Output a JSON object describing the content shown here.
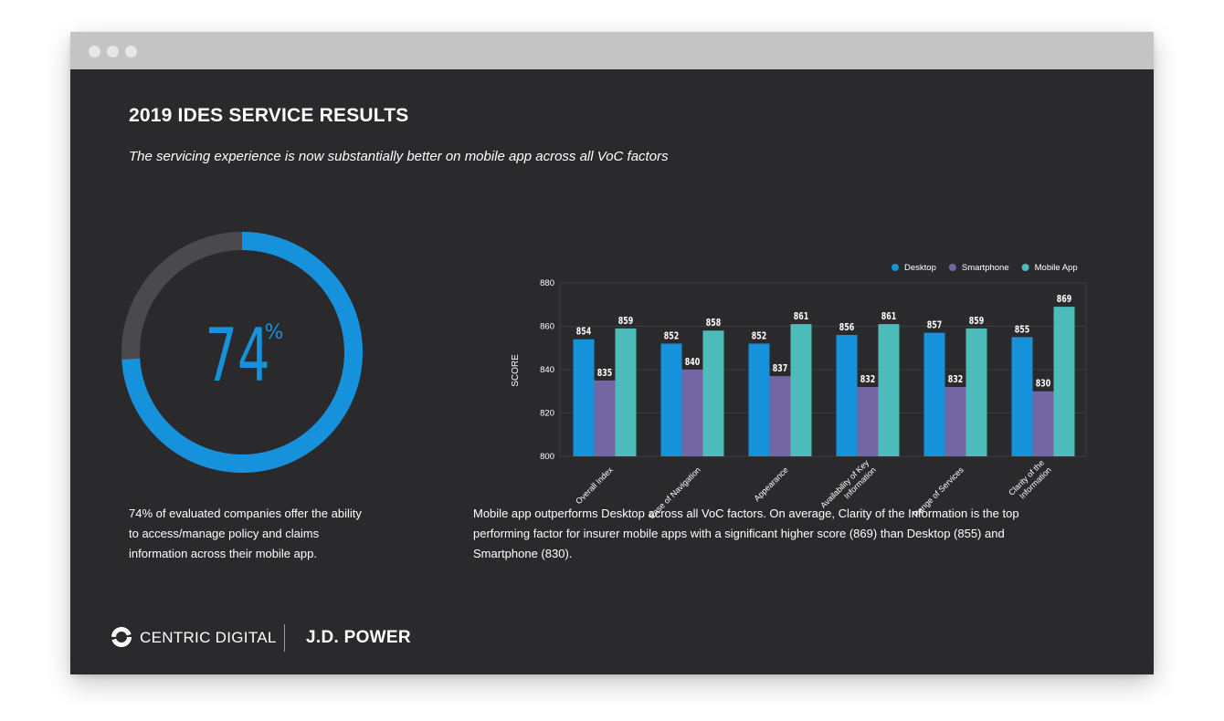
{
  "header": {
    "title": "2019 IDES SERVICE RESULTS",
    "subtitle": "The servicing experience is now substantially better on mobile app across all VoC factors"
  },
  "donut": {
    "value": 74,
    "value_label": "74",
    "unit": "%",
    "color": "#1592db",
    "track_color": "#4a4a4c",
    "description": "74% of evaluated companies offer the ability to access/manage policy and claims information across their mobile app."
  },
  "chart_data": {
    "type": "bar",
    "title": "",
    "xlabel": "",
    "ylabel": "SCORE",
    "ylim": [
      800,
      880
    ],
    "yticks": [
      800,
      820,
      840,
      860,
      880
    ],
    "grid": true,
    "legend_position": "top-right",
    "categories": [
      "Overall Index",
      "Ease of Navigation",
      "Appearance",
      "Availability of Key Information",
      "Range of Services",
      "Clarity of the Information"
    ],
    "category_lines": [
      [
        "Overall Index"
      ],
      [
        "Ease of Navigation"
      ],
      [
        "Appearance"
      ],
      [
        "Availability of Key",
        "Information"
      ],
      [
        "Range of Services"
      ],
      [
        "Clarity of the",
        "Information"
      ]
    ],
    "series": [
      {
        "name": "Desktop",
        "color": "#1592db",
        "values": [
          854,
          852,
          852,
          856,
          857,
          855
        ]
      },
      {
        "name": "Smartphone",
        "color": "#7366a3",
        "values": [
          835,
          840,
          837,
          832,
          832,
          830
        ]
      },
      {
        "name": "Mobile App",
        "color": "#4bbcba",
        "values": [
          859,
          858,
          861,
          861,
          859,
          869
        ]
      }
    ],
    "description": "Mobile app outperforms Desktop across all VoC factors. On average, Clarity of the Information is the top performing factor for insurer mobile apps with a significant higher score (869) than Desktop (855) and Smartphone (830)."
  },
  "footer": {
    "brand1": "CENTRIC DIGITAL",
    "brand2": "J.D. POWER"
  }
}
